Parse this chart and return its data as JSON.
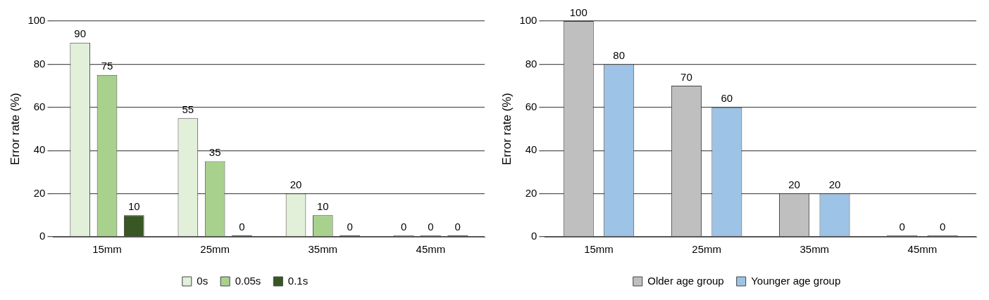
{
  "chart_data": [
    {
      "type": "bar",
      "ylabel": "Error rate (%)",
      "categories": [
        "15mm",
        "25mm",
        "35mm",
        "45mm"
      ],
      "ylim": [
        0,
        100
      ],
      "yticks": [
        0,
        20,
        40,
        60,
        80,
        100
      ],
      "grid": "y",
      "legend": "bottom",
      "data_labels": true,
      "series": [
        {
          "name": "0s",
          "color": "#e2f0d9",
          "values": [
            90,
            55,
            20,
            0
          ]
        },
        {
          "name": "0.05s",
          "color": "#a9d18e",
          "values": [
            75,
            35,
            10,
            0
          ]
        },
        {
          "name": "0.1s",
          "color": "#385723",
          "values": [
            10,
            0,
            0,
            0
          ]
        }
      ]
    },
    {
      "type": "bar",
      "ylabel": "Error rate (%)",
      "categories": [
        "15mm",
        "25mm",
        "35mm",
        "45mm"
      ],
      "ylim": [
        0,
        100
      ],
      "yticks": [
        0,
        20,
        40,
        60,
        80,
        100
      ],
      "grid": "y",
      "legend": "bottom",
      "data_labels": true,
      "series": [
        {
          "name": "Older age group",
          "color": "#bfbfbf",
          "values": [
            100,
            70,
            20,
            0
          ]
        },
        {
          "name": "Younger age group",
          "color": "#9dc3e6",
          "values": [
            80,
            60,
            20,
            0
          ]
        }
      ]
    }
  ]
}
